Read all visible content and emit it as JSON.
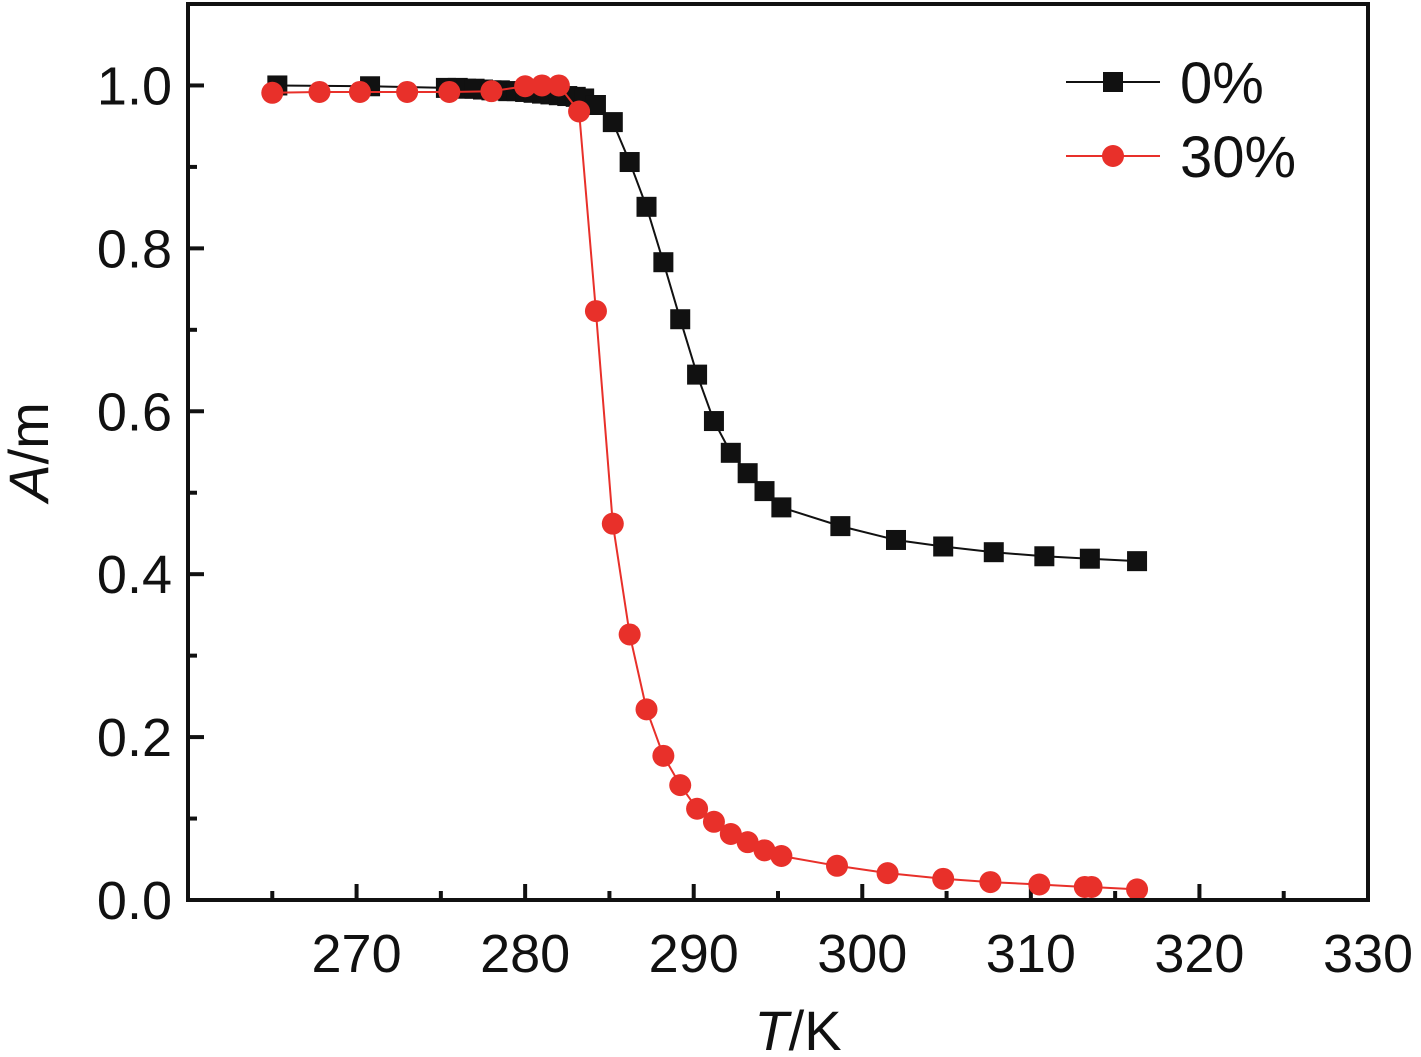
{
  "chart_data": {
    "type": "line",
    "title": "",
    "xlabel_italic": "T",
    "xlabel_unit": "/K",
    "ylabel_italic": "A",
    "ylabel_unit": "/m",
    "xlim": [
      260,
      330
    ],
    "ylim": [
      0.0,
      1.1
    ],
    "x_ticks": [
      "270",
      "280",
      "290",
      "300",
      "310",
      "320",
      "330"
    ],
    "y_ticks": [
      "0.0",
      "0.2",
      "0.4",
      "0.6",
      "0.8",
      "1.0"
    ],
    "grid": false,
    "legend_position": "top-right",
    "series": [
      {
        "name": "0%",
        "color": "#111111",
        "marker": "square",
        "x": [
          265.3,
          270.8,
          275.3,
          276.0,
          276.5,
          277.0,
          277.5,
          278.0,
          278.5,
          279.0,
          279.5,
          280.0,
          280.5,
          281.0,
          281.5,
          282.0,
          282.5,
          283.0,
          283.5,
          284.2,
          285.2,
          286.2,
          287.2,
          288.2,
          289.2,
          290.2,
          291.2,
          292.2,
          293.2,
          294.2,
          295.2,
          298.7,
          302.0,
          304.8,
          307.8,
          310.8,
          313.5,
          316.3
        ],
        "y": [
          1.0,
          0.999,
          0.997,
          0.997,
          0.996,
          0.996,
          0.995,
          0.994,
          0.994,
          0.993,
          0.993,
          0.992,
          0.991,
          0.99,
          0.989,
          0.988,
          0.987,
          0.986,
          0.984,
          0.976,
          0.955,
          0.906,
          0.851,
          0.783,
          0.713,
          0.645,
          0.588,
          0.549,
          0.524,
          0.502,
          0.482,
          0.459,
          0.442,
          0.434,
          0.427,
          0.422,
          0.419,
          0.416
        ]
      },
      {
        "name": "30%",
        "color": "#e8302a",
        "marker": "circle",
        "x": [
          265.0,
          267.8,
          270.2,
          273.0,
          275.5,
          278.0,
          280.0,
          281.0,
          282.0,
          283.2,
          284.2,
          285.2,
          286.2,
          287.2,
          288.2,
          289.2,
          290.2,
          291.2,
          292.2,
          293.2,
          294.2,
          295.2,
          298.5,
          301.5,
          304.8,
          307.6,
          310.5,
          313.2,
          313.6,
          316.3
        ],
        "y": [
          0.991,
          0.992,
          0.992,
          0.992,
          0.992,
          0.993,
          0.999,
          1.0,
          1.0,
          0.968,
          0.723,
          0.462,
          0.326,
          0.234,
          0.177,
          0.141,
          0.112,
          0.096,
          0.081,
          0.071,
          0.061,
          0.054,
          0.042,
          0.033,
          0.026,
          0.022,
          0.019,
          0.016,
          0.016,
          0.013
        ]
      }
    ]
  }
}
